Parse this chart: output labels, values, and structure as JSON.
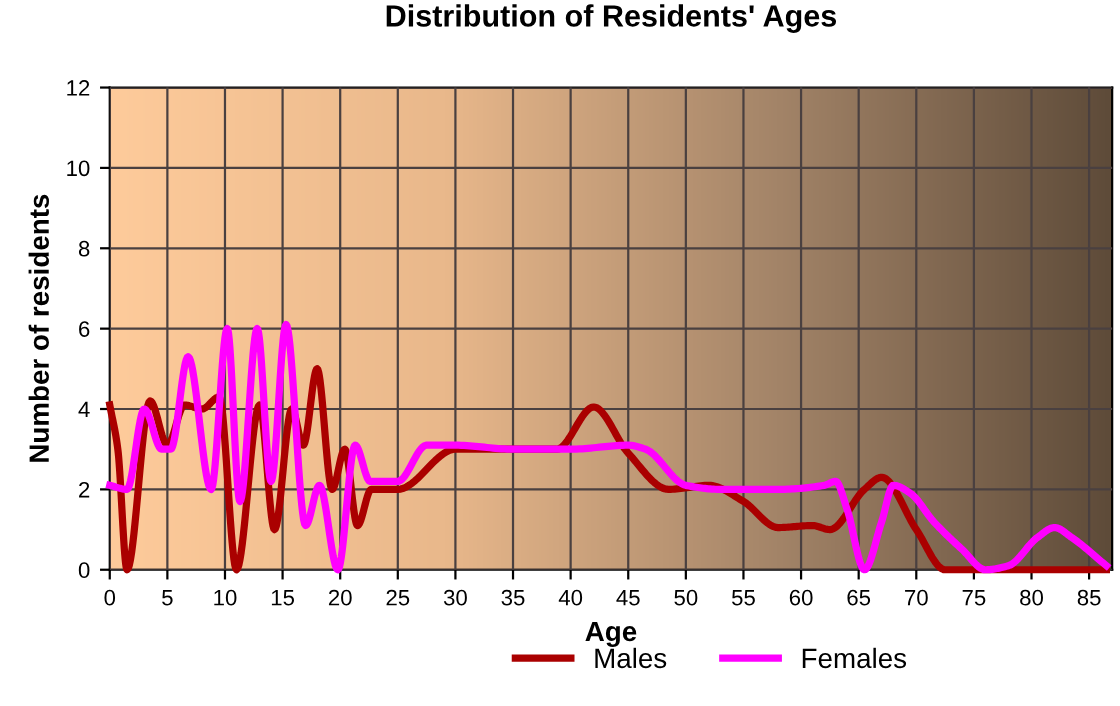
{
  "chart_data": {
    "type": "line",
    "title": "Distribution of Residents' Ages",
    "xlabel": "Age",
    "ylabel": "Number of residents",
    "xlim": [
      0,
      87
    ],
    "xticks": [
      0,
      5,
      10,
      15,
      20,
      25,
      30,
      35,
      40,
      45,
      50,
      55,
      60,
      65,
      70,
      75,
      80,
      85
    ],
    "ylim": [
      0,
      12
    ],
    "yticks": [
      0,
      2,
      4,
      6,
      8,
      10,
      12
    ],
    "grid": true,
    "legend": "bottom",
    "series": [
      {
        "name": "Males",
        "color": "#aa0000",
        "x": [
          0,
          0.7,
          1.5,
          3.5,
          5,
          6.5,
          8,
          9.5,
          11,
          13,
          14.3,
          15.8,
          16.8,
          18,
          19.3,
          20.4,
          21.5,
          22.7,
          25,
          30,
          35,
          38.8,
          42,
          45,
          48.5,
          52,
          55,
          58,
          61,
          62.5,
          65.5,
          67,
          70,
          72.5,
          80,
          86.5
        ],
        "values": [
          4.1,
          3,
          0,
          4.2,
          3.1,
          4.1,
          4,
          4.3,
          0,
          4.1,
          1,
          4,
          3.1,
          5,
          2,
          3,
          1.1,
          2,
          2,
          3,
          3,
          3,
          4.05,
          2.9,
          2,
          2.1,
          1.7,
          1.05,
          1.1,
          1,
          2,
          2.3,
          1,
          0,
          0,
          0
        ]
      },
      {
        "name": "Females",
        "color": "#ff00ff",
        "x": [
          0,
          1.5,
          3,
          4.5,
          5.3,
          6.8,
          8.8,
          10.2,
          11.3,
          12.8,
          14,
          15.3,
          17,
          18.2,
          19.8,
          21.3,
          22.6,
          25,
          27.5,
          30,
          35,
          40,
          45,
          46.5,
          50,
          53,
          58,
          62,
          63,
          64,
          65.5,
          67,
          68,
          69.5,
          71.5,
          74,
          76,
          78,
          80.5,
          82,
          83.5,
          86.5
        ],
        "values": [
          2.1,
          2,
          4,
          3,
          3,
          5.3,
          2,
          6,
          1.7,
          6,
          2.2,
          6.1,
          1.1,
          2.1,
          0,
          3.1,
          2.2,
          2.2,
          3.1,
          3.1,
          3,
          3,
          3.1,
          3,
          2.1,
          2,
          2,
          2.1,
          2.2,
          1.5,
          0,
          1.2,
          2.1,
          1.9,
          1.2,
          0.5,
          0,
          0.1,
          0.8,
          1.05,
          0.8,
          0.1
        ]
      }
    ]
  }
}
